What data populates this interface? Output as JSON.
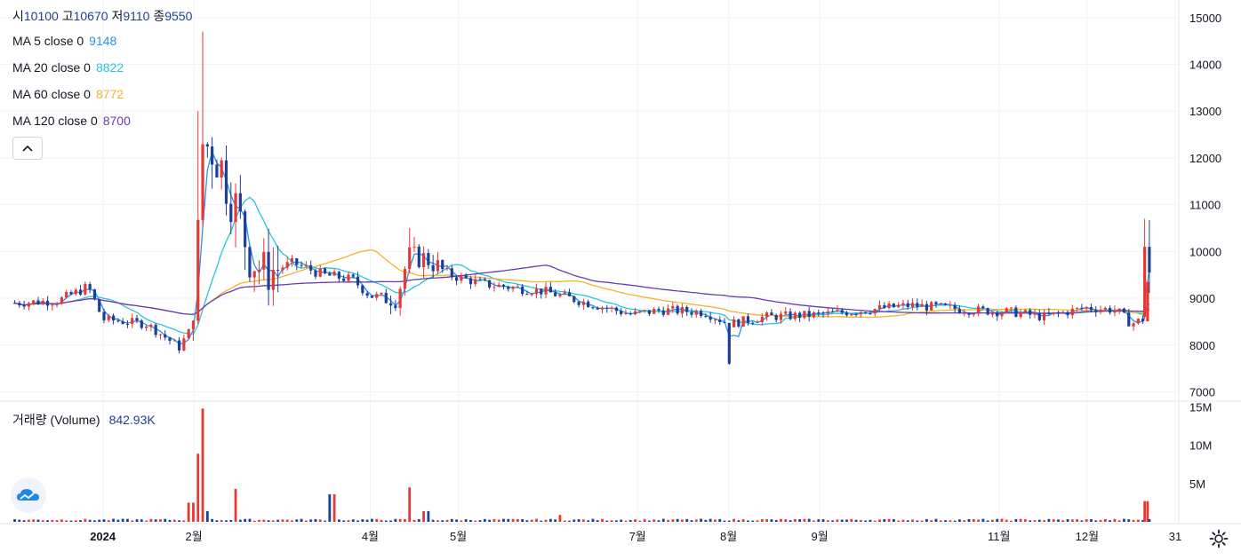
{
  "ohlc": {
    "open_label": "시",
    "open": "10100",
    "high_label": "고",
    "high": "10670",
    "low_label": "저",
    "low": "9110",
    "close_label": "종",
    "close": "9550"
  },
  "legend": [
    {
      "label": "MA 5 close 0",
      "value": "9148",
      "color": "#2196f3"
    },
    {
      "label": "MA 20 close 0",
      "value": "8822",
      "color": "#26c6da"
    },
    {
      "label": "MA 60 close 0",
      "value": "8772",
      "color": "#f5b22c"
    },
    {
      "label": "MA 120 close 0",
      "value": "8700",
      "color": "#673ab7"
    }
  ],
  "volume": {
    "label": "거래량 (Volume)",
    "value": "842.93K"
  },
  "colors": {
    "up": "#e53935",
    "down": "#1e3f96",
    "text": "#131722",
    "grid": "#f0f3fa",
    "axis": "#e0e3eb"
  },
  "icons": {
    "collapse": "chevron-up-icon",
    "logo": "cloud-logo-icon",
    "settings": "gear-icon"
  },
  "chart_data": {
    "type": "candlestick",
    "price_axis": {
      "ticks": [
        7000,
        8000,
        9000,
        10000,
        11000,
        12000,
        13000,
        14000,
        15000
      ],
      "range": [
        6800,
        15300
      ]
    },
    "volume_axis": {
      "ticks": [
        "5M",
        "10M",
        "15M"
      ],
      "range": [
        0,
        15300000
      ]
    },
    "time_labels": [
      {
        "label": "2024",
        "day": 0
      },
      {
        "label": "2월",
        "day": 31
      },
      {
        "label": "4월",
        "day": 91
      },
      {
        "label": "5월",
        "day": 121
      },
      {
        "label": "7월",
        "day": 182
      },
      {
        "label": "8월",
        "day": 213
      },
      {
        "label": "9월",
        "day": 244
      },
      {
        "label": "11월",
        "day": 305
      },
      {
        "label": "12월",
        "day": 335
      },
      {
        "label": "31",
        "day": 365
      }
    ],
    "key_points": [
      {
        "day": -30,
        "price": 8900
      },
      {
        "day": -15,
        "price": 8950
      },
      {
        "day": -5,
        "price": 9250
      },
      {
        "day": 0,
        "price": 8550
      },
      {
        "day": 15,
        "price": 8450
      },
      {
        "day": 26,
        "price": 7950
      },
      {
        "day": 30,
        "price": 8350
      },
      {
        "day": 32,
        "price": 9800
      },
      {
        "day": 34,
        "price": 12300
      },
      {
        "day": 38,
        "price": 12200
      },
      {
        "day": 45,
        "price": 11000
      },
      {
        "day": 50,
        "price": 9900
      },
      {
        "day": 55,
        "price": 9550
      },
      {
        "day": 65,
        "price": 9750
      },
      {
        "day": 75,
        "price": 9500
      },
      {
        "day": 85,
        "price": 9400
      },
      {
        "day": 91,
        "price": 9050
      },
      {
        "day": 100,
        "price": 9000
      },
      {
        "day": 104,
        "price": 9900
      },
      {
        "day": 110,
        "price": 9850
      },
      {
        "day": 118,
        "price": 9500
      },
      {
        "day": 130,
        "price": 9300
      },
      {
        "day": 150,
        "price": 9150
      },
      {
        "day": 165,
        "price": 8900
      },
      {
        "day": 180,
        "price": 8650
      },
      {
        "day": 190,
        "price": 8750
      },
      {
        "day": 205,
        "price": 8700
      },
      {
        "day": 213,
        "price": 8450
      },
      {
        "day": 225,
        "price": 8600
      },
      {
        "day": 244,
        "price": 8650
      },
      {
        "day": 260,
        "price": 8750
      },
      {
        "day": 275,
        "price": 8850
      },
      {
        "day": 295,
        "price": 8750
      },
      {
        "day": 310,
        "price": 8700
      },
      {
        "day": 320,
        "price": 8600
      },
      {
        "day": 335,
        "price": 8800
      },
      {
        "day": 345,
        "price": 8750
      },
      {
        "day": 350,
        "price": 8450
      },
      {
        "day": 354,
        "price": 8550
      },
      {
        "day": 356,
        "price": 9550
      }
    ],
    "final_candle": {
      "open": 10100,
      "high": 10670,
      "low": 9110,
      "close": 9550,
      "volume": 842930
    },
    "volume_spikes": [
      {
        "day": 30,
        "volume": 2500000
      },
      {
        "day": 32,
        "volume": 8900000
      },
      {
        "day": 33,
        "volume": 8100000
      },
      {
        "day": 34,
        "volume": 14800000
      },
      {
        "day": 36,
        "volume": 1400000
      },
      {
        "day": 45,
        "volume": 4300000
      },
      {
        "day": 78,
        "volume": 3600000
      },
      {
        "day": 104,
        "volume": 4500000
      },
      {
        "day": 110,
        "volume": 1400000
      },
      {
        "day": 156,
        "volume": 900000
      },
      {
        "day": 355,
        "volume": 2700000
      }
    ],
    "ma": [
      {
        "name": "MA 5 close 0",
        "value": 9148
      },
      {
        "name": "MA 20 close 0",
        "value": 8822
      },
      {
        "name": "MA 60 close 0",
        "value": 8772
      },
      {
        "name": "MA 120 close 0",
        "value": 8700
      }
    ]
  }
}
